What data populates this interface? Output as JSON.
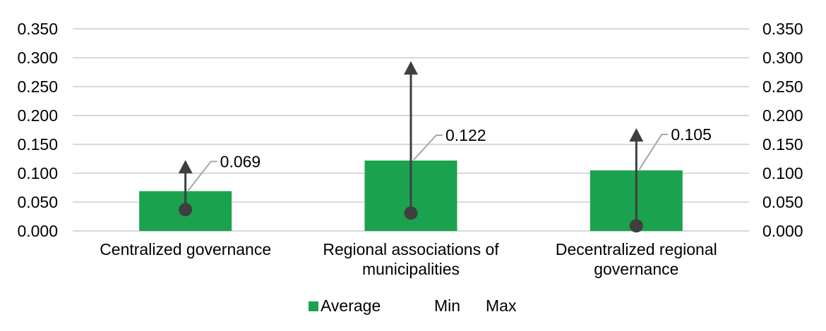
{
  "chart_data": {
    "type": "bar",
    "title": "",
    "categories": [
      "Centralized governance",
      "Regional associations of municipalities",
      "Decentralized regional governance"
    ],
    "series": [
      {
        "name": "Average",
        "role": "bar",
        "values": [
          0.069,
          0.122,
          0.105
        ],
        "data_labels": [
          "0.069",
          "0.122",
          "0.105"
        ]
      },
      {
        "name": "Min",
        "role": "point",
        "marker": "dot",
        "values": [
          0.037,
          0.031,
          0.009
        ]
      },
      {
        "name": "Max",
        "role": "point",
        "marker": "arrow-up",
        "values": [
          0.123,
          0.294,
          0.178
        ]
      }
    ],
    "y_axis": {
      "min": 0,
      "max": 0.35,
      "step": 0.05,
      "tick_labels": [
        "0.000",
        "0.050",
        "0.100",
        "0.150",
        "0.200",
        "0.250",
        "0.300",
        "0.350"
      ],
      "shown_on_left": true,
      "shown_on_right": true
    },
    "grid": true,
    "legend": {
      "position": "bottom",
      "entries": [
        "Average",
        "Min",
        "Max"
      ]
    }
  },
  "colors": {
    "bar_green": "#1BA24F",
    "marker_gray": "#3F3F3F",
    "leader_gray": "#A6A6A6",
    "gridline_gray": "#D9D9D9",
    "text": "#000000"
  }
}
